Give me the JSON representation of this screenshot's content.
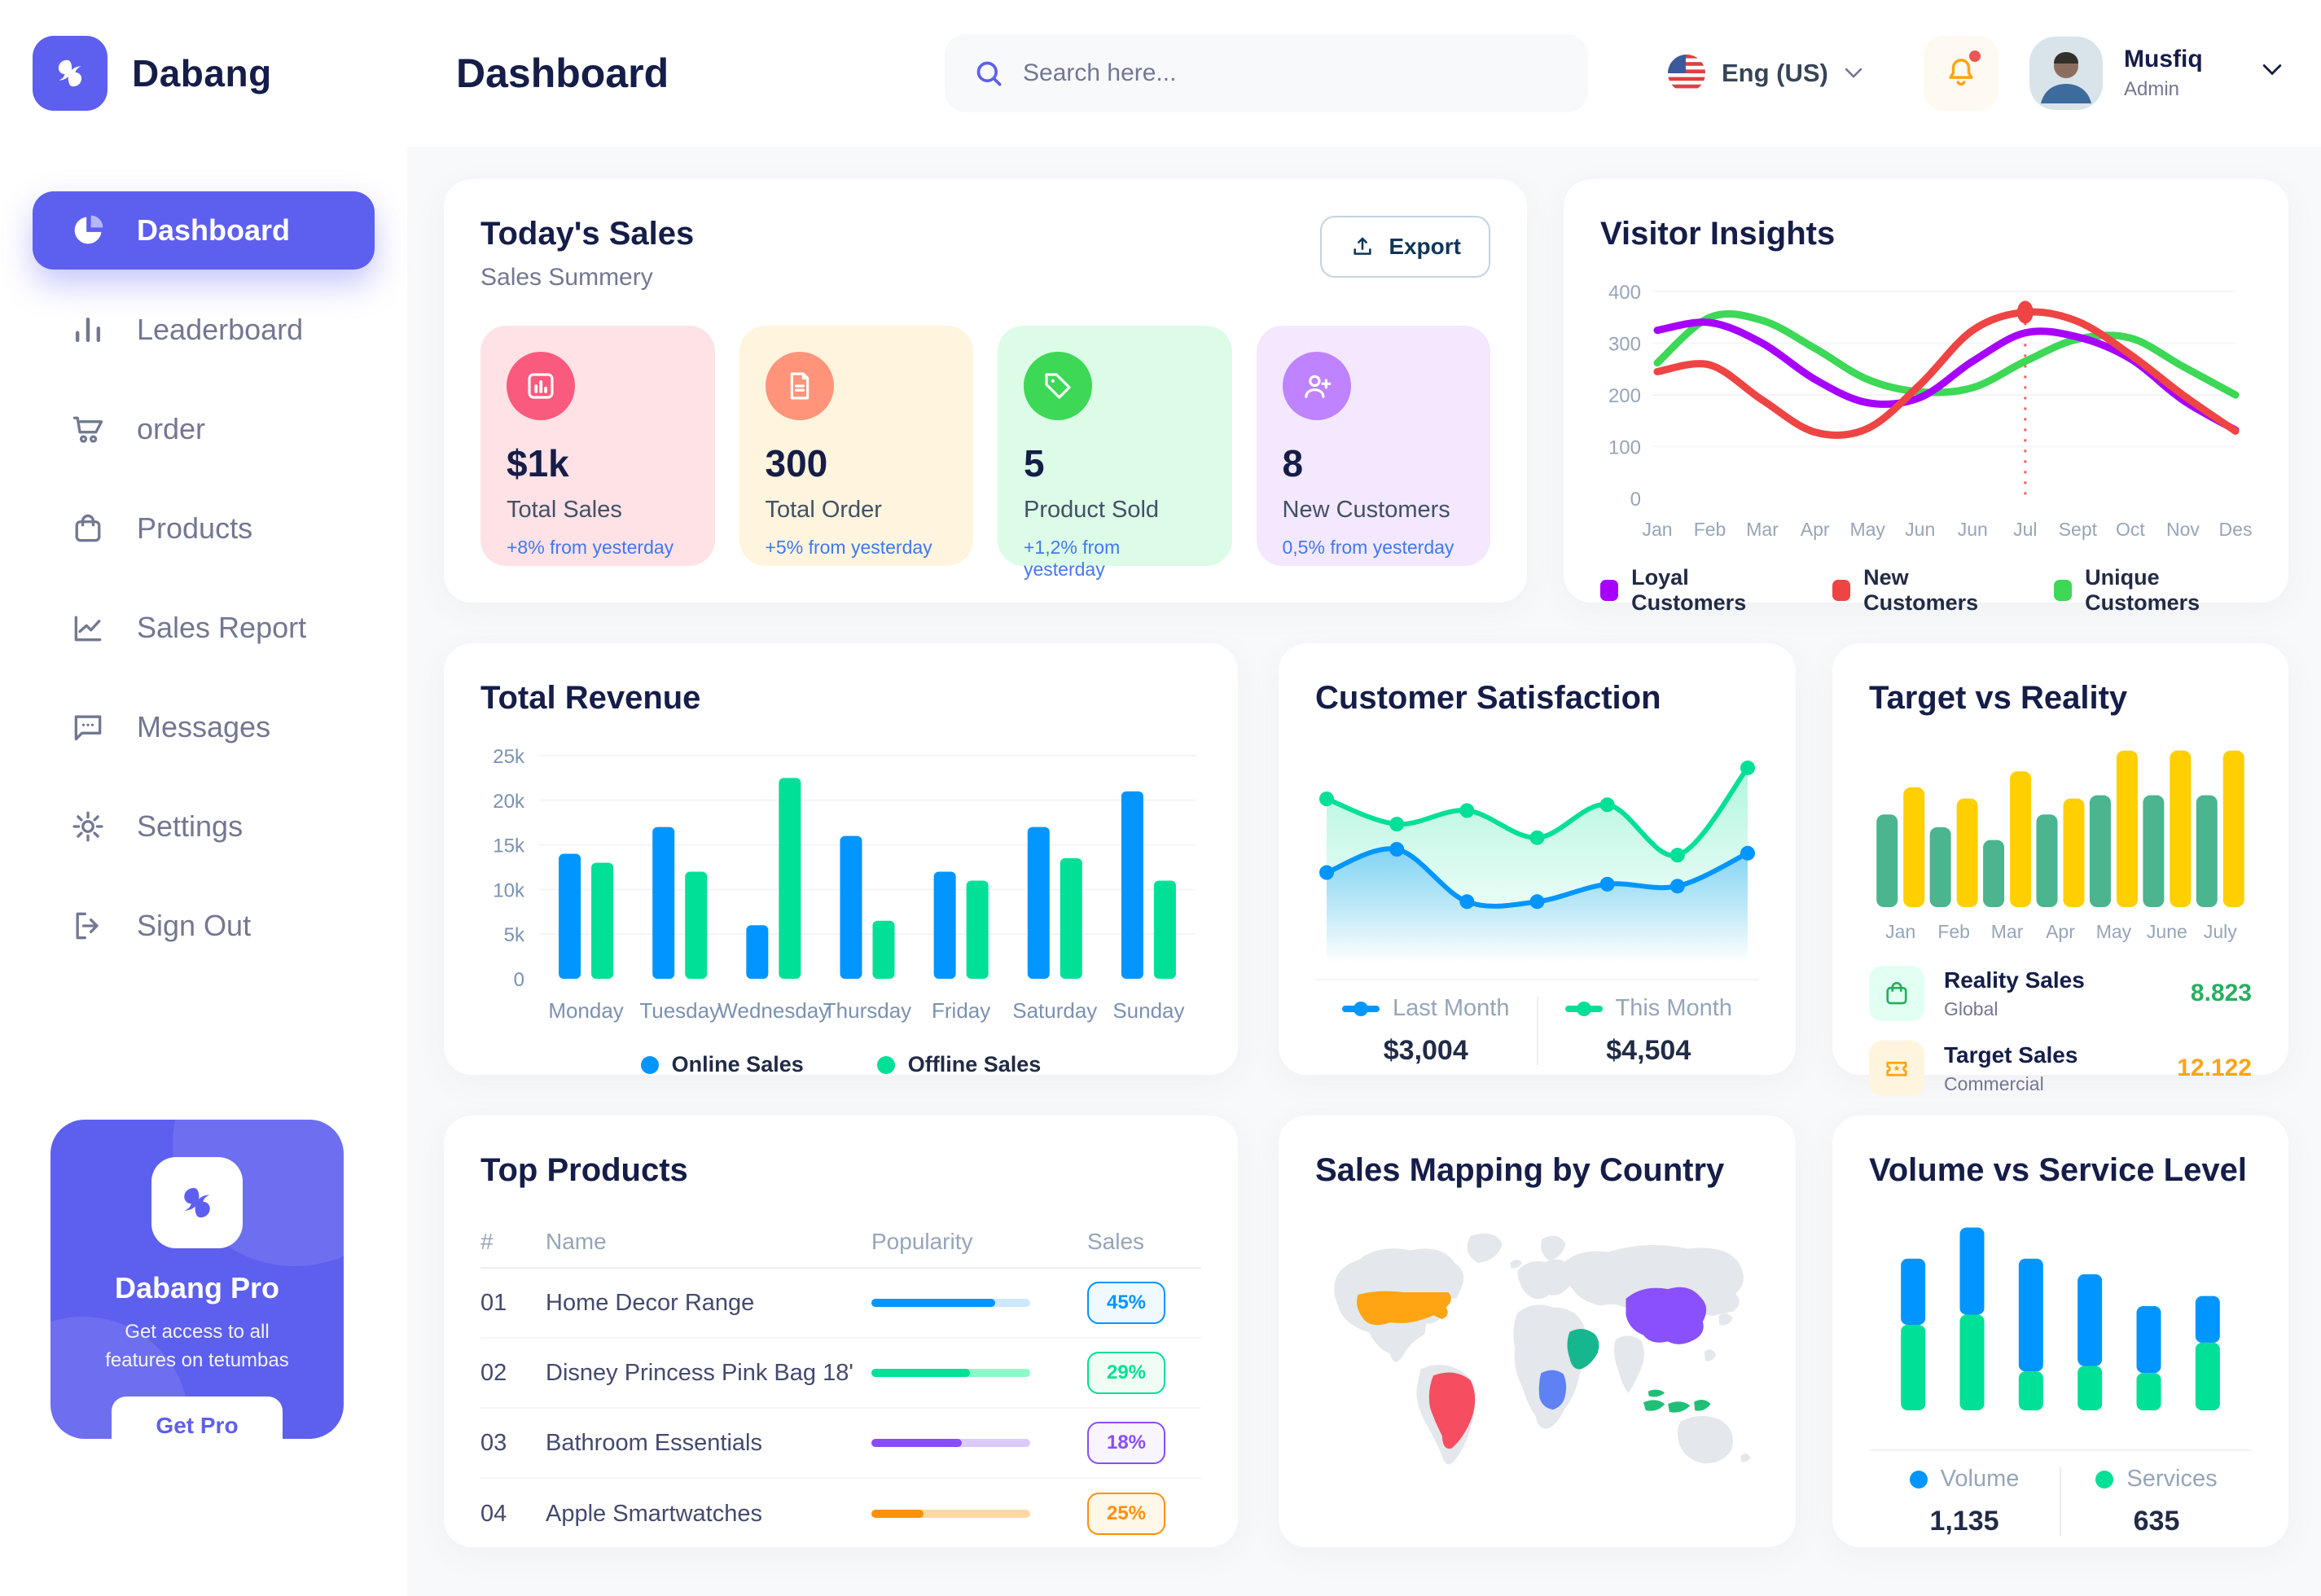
{
  "brand": {
    "name": "Dabang"
  },
  "header": {
    "title": "Dashboard",
    "search_placeholder": "Search here...",
    "language": "Eng (US)",
    "user": {
      "name": "Musfiq",
      "role": "Admin"
    }
  },
  "sidebar": {
    "items": [
      {
        "label": "Dashboard",
        "active": true
      },
      {
        "label": "Leaderboard"
      },
      {
        "label": "order"
      },
      {
        "label": "Products"
      },
      {
        "label": "Sales Report"
      },
      {
        "label": "Messages"
      },
      {
        "label": "Settings"
      },
      {
        "label": "Sign Out"
      }
    ],
    "pro": {
      "title": "Dabang Pro",
      "description": "Get access to all features on tetumbas",
      "button_label": "Get Pro"
    }
  },
  "today_sales": {
    "title": "Today's Sales",
    "subtitle": "Sales Summery",
    "export_label": "Export",
    "cards": [
      {
        "value": "$1k",
        "label": "Total Sales",
        "delta": "+8% from yesterday",
        "bg": "#FFE2E5",
        "icon_bg": "#FA5A7D",
        "icon": "chart-bars-icon"
      },
      {
        "value": "300",
        "label": "Total Order",
        "delta": "+5% from yesterday",
        "bg": "#FFF4DE",
        "icon_bg": "#FF947A",
        "icon": "order-receipt-icon"
      },
      {
        "value": "5",
        "label": "Product Sold",
        "delta": "+1,2% from yesterday",
        "bg": "#DCFCE7",
        "icon_bg": "#3CD856",
        "icon": "tag-check-icon"
      },
      {
        "value": "8",
        "label": "New Customers",
        "delta": "0,5% from yesterday",
        "bg": "#F3E8FF",
        "icon_bg": "#BF83FF",
        "icon": "user-plus-icon"
      }
    ]
  },
  "chart_data": {
    "visitor_insights": {
      "type": "line",
      "title": "Visitor Insights",
      "x": [
        "Jan",
        "Feb",
        "Mar",
        "Apr",
        "May",
        "Jun",
        "Jun",
        "Jul",
        "Sept",
        "Oct",
        "Nov",
        "Des"
      ],
      "ylim": [
        0,
        400
      ],
      "yticks": [
        0,
        100,
        200,
        300,
        400
      ],
      "grid": true,
      "legend_position": "bottom",
      "series": [
        {
          "name": "Loyal Customers",
          "color": "#A700FF",
          "values": [
            325,
            340,
            300,
            230,
            185,
            195,
            265,
            320,
            312,
            270,
            190,
            132
          ]
        },
        {
          "name": "New Customers",
          "color": "#EF4444",
          "values": [
            245,
            258,
            190,
            128,
            135,
            220,
            325,
            360,
            342,
            278,
            200,
            130
          ]
        },
        {
          "name": "Unique Customers",
          "color": "#3CD856",
          "values": [
            262,
            350,
            344,
            290,
            230,
            206,
            214,
            265,
            308,
            310,
            255,
            200
          ]
        }
      ],
      "marker": {
        "series": "New Customers",
        "x_index": 7,
        "x_label": "Jul",
        "value": 360,
        "color": "#EF4444"
      }
    },
    "total_revenue": {
      "type": "bar",
      "title": "Total Revenue",
      "categories": [
        "Monday",
        "Tuesday",
        "Wednesday",
        "Thursday",
        "Friday",
        "Saturday",
        "Sunday"
      ],
      "ylim": [
        0,
        25000
      ],
      "yticks": [
        "0",
        "5k",
        "10k",
        "15k",
        "20k",
        "25k"
      ],
      "grid": true,
      "legend_position": "bottom",
      "series": [
        {
          "name": "Online Sales",
          "color": "#0095FF",
          "values_k": [
            14,
            17,
            6,
            16,
            12,
            17,
            21
          ]
        },
        {
          "name": "Offline Sales",
          "color": "#00E096",
          "values_k": [
            13,
            12,
            22.5,
            6.5,
            11,
            13.5,
            11
          ]
        }
      ]
    },
    "customer_satisfaction": {
      "type": "area",
      "title": "Customer Satisfaction",
      "ylim": [
        0,
        100
      ],
      "legend_position": "bottom",
      "series": [
        {
          "name": "Last Month",
          "color": "#0095FF",
          "total": "$3,004",
          "values": [
            38,
            50,
            23,
            23,
            32,
            31,
            48
          ]
        },
        {
          "name": "This Month",
          "color": "#00E096",
          "total": "$4,504",
          "values": [
            76,
            63,
            70,
            56,
            73,
            47,
            92
          ]
        }
      ]
    },
    "target_vs_reality": {
      "type": "bar",
      "title": "Target vs Reality",
      "categories": [
        "Jan",
        "Feb",
        "Mar",
        "Apr",
        "May",
        "June",
        "July"
      ],
      "ylim": [
        0,
        105
      ],
      "series": [
        {
          "name": "Reality Sales",
          "subtitle": "Global",
          "color": "#4AB58E",
          "value_label": "8.823",
          "value_color": "#27AE60",
          "tile_bg": "#E2FFF3",
          "values": [
            58,
            50,
            42,
            58,
            70,
            70,
            70
          ]
        },
        {
          "name": "Target Sales",
          "subtitle": "Commercial",
          "color": "#FFCF00",
          "value_label": "12.122",
          "value_color": "#FFA412",
          "tile_bg": "#FFF4DE",
          "values": [
            75,
            68,
            85,
            68,
            98,
            98,
            98
          ]
        }
      ]
    },
    "top_products": {
      "type": "table",
      "title": "Top Products",
      "headers": [
        "#",
        "Name",
        "Popularity",
        "Sales"
      ],
      "rows": [
        {
          "rank": "01",
          "name": "Home Decor Range",
          "popularity_percent": 78,
          "sales": "45%",
          "color": "#0095FF",
          "track": "#CDE7FF",
          "badge_bg": "#F0F9FF"
        },
        {
          "rank": "02",
          "name": "Disney Princess Pink Bag 18'",
          "popularity_percent": 62,
          "sales": "29%",
          "color": "#00E096",
          "track": "#8CFAC7",
          "badge_bg": "#F0FDF4"
        },
        {
          "rank": "03",
          "name": "Bathroom Essentials",
          "popularity_percent": 57,
          "sales": "18%",
          "color": "#884DFF",
          "track": "#DCCAFF",
          "badge_bg": "#F9F5FF"
        },
        {
          "rank": "04",
          "name": "Apple Smartwatches",
          "popularity_percent": 33,
          "sales": "25%",
          "color": "#FF8F0D",
          "track": "#FFD8A6",
          "badge_bg": "#FFF7E8"
        }
      ]
    },
    "sales_map": {
      "type": "map",
      "title": "Sales Mapping by Country",
      "countries": [
        {
          "name": "United States",
          "color": "#FFA412"
        },
        {
          "name": "Brazil",
          "color": "#F64E60"
        },
        {
          "name": "Saudi Arabia",
          "color": "#16B78F"
        },
        {
          "name": "DR Congo",
          "color": "#5E81F4"
        },
        {
          "name": "China",
          "color": "#8950FC"
        },
        {
          "name": "Indonesia",
          "color": "#22BE77"
        }
      ],
      "colors": {
        "base": "#E4E7EB",
        "usa": "#FFA412",
        "brazil": "#F64E60",
        "saudi": "#16B78F",
        "congo": "#5E81F4",
        "china": "#8950FC",
        "indonesia": "#22BE77"
      }
    },
    "volume_vs_service": {
      "type": "stacked-bar",
      "title": "Volume vs Service Level",
      "ylim": [
        0,
        245
      ],
      "legend_position": "bottom",
      "series": [
        {
          "name": "Volume",
          "color": "#0095FF",
          "total": "1,135",
          "values": [
            85,
            112,
            145,
            118,
            86,
            60
          ]
        },
        {
          "name": "Services",
          "color": "#00E096",
          "total": "635",
          "values": [
            110,
            123,
            50,
            57,
            48,
            87
          ]
        }
      ]
    }
  }
}
